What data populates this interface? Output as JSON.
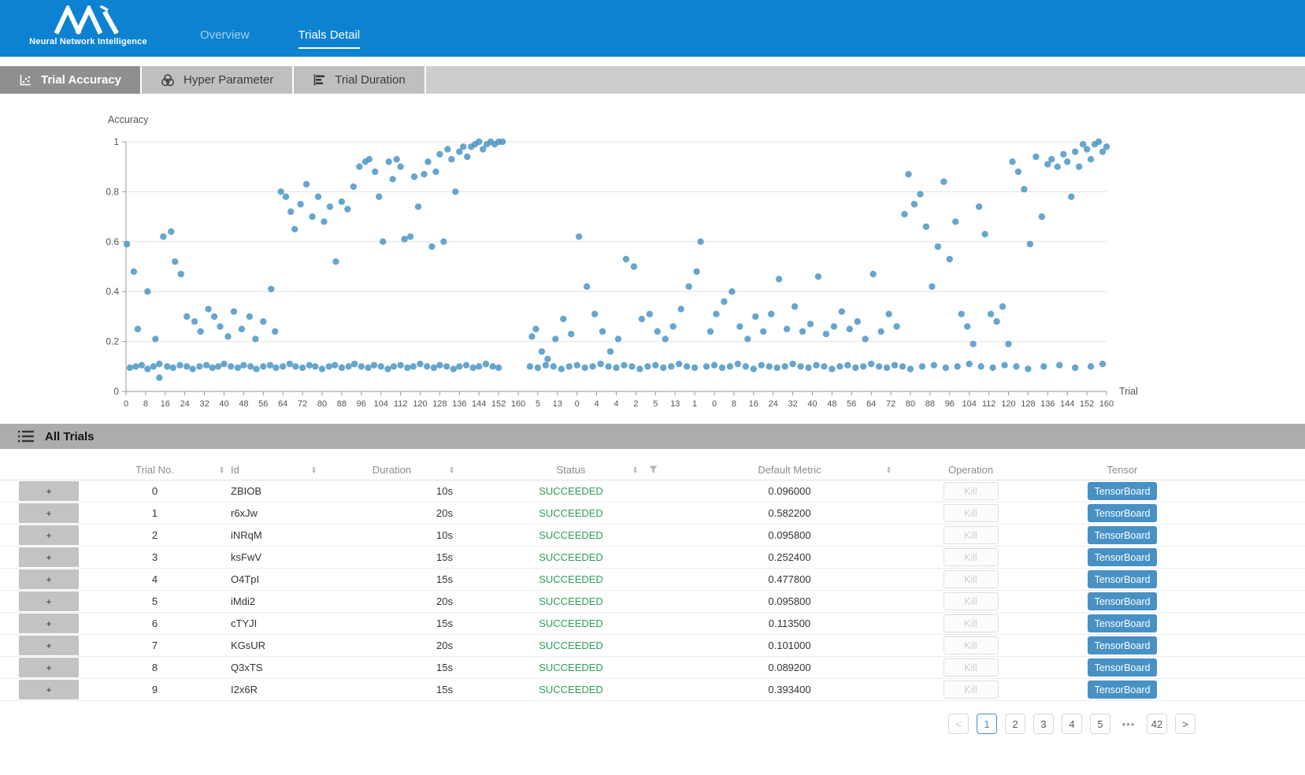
{
  "header": {
    "brand": {
      "subtitle": "Neural Network Intelligence"
    },
    "nav": [
      {
        "label": "Overview",
        "active": false
      },
      {
        "label": "Trials Detail",
        "active": true
      }
    ]
  },
  "subtabs": [
    {
      "label": "Trial Accuracy",
      "active": true
    },
    {
      "label": "Hyper Parameter",
      "active": false
    },
    {
      "label": "Trial Duration",
      "active": false
    }
  ],
  "chart_data": {
    "type": "scatter",
    "title": "",
    "ylabel": "Accuracy",
    "xlabel": "Trial",
    "ylim": [
      0,
      1
    ],
    "yticks": [
      0,
      0.2,
      0.4,
      0.6,
      0.8,
      1
    ],
    "grid": true,
    "point_color": "#4b96c6",
    "xticklabels": [
      "0",
      "8",
      "16",
      "24",
      "32",
      "40",
      "48",
      "56",
      "64",
      "72",
      "80",
      "88",
      "96",
      "104",
      "112",
      "120",
      "128",
      "136",
      "144",
      "152",
      "160",
      "5",
      "13",
      "0",
      "4",
      "4",
      "2",
      "5",
      "13",
      "1",
      "0",
      "8",
      "16",
      "24",
      "32",
      "40",
      "48",
      "56",
      "64",
      "72",
      "80",
      "88",
      "96",
      "104",
      "112",
      "120",
      "128",
      "136",
      "144",
      "152",
      "160"
    ],
    "points": [
      [
        0.004,
        0.095
      ],
      [
        0.01,
        0.1
      ],
      [
        0.016,
        0.105
      ],
      [
        0.022,
        0.09
      ],
      [
        0.028,
        0.1
      ],
      [
        0.034,
        0.11
      ],
      [
        0.042,
        0.1
      ],
      [
        0.048,
        0.095
      ],
      [
        0.055,
        0.105
      ],
      [
        0.062,
        0.1
      ],
      [
        0.068,
        0.09
      ],
      [
        0.075,
        0.1
      ],
      [
        0.082,
        0.105
      ],
      [
        0.088,
        0.095
      ],
      [
        0.094,
        0.1
      ],
      [
        0.1,
        0.11
      ],
      [
        0.107,
        0.1
      ],
      [
        0.114,
        0.095
      ],
      [
        0.12,
        0.105
      ],
      [
        0.127,
        0.1
      ],
      [
        0.133,
        0.09
      ],
      [
        0.14,
        0.1
      ],
      [
        0.147,
        0.105
      ],
      [
        0.153,
        0.095
      ],
      [
        0.16,
        0.1
      ],
      [
        0.167,
        0.11
      ],
      [
        0.173,
        0.1
      ],
      [
        0.18,
        0.095
      ],
      [
        0.187,
        0.105
      ],
      [
        0.193,
        0.1
      ],
      [
        0.2,
        0.09
      ],
      [
        0.207,
        0.1
      ],
      [
        0.213,
        0.105
      ],
      [
        0.22,
        0.095
      ],
      [
        0.227,
        0.1
      ],
      [
        0.233,
        0.11
      ],
      [
        0.24,
        0.1
      ],
      [
        0.247,
        0.095
      ],
      [
        0.253,
        0.105
      ],
      [
        0.26,
        0.1
      ],
      [
        0.267,
        0.09
      ],
      [
        0.273,
        0.1
      ],
      [
        0.28,
        0.105
      ],
      [
        0.287,
        0.095
      ],
      [
        0.293,
        0.1
      ],
      [
        0.3,
        0.11
      ],
      [
        0.307,
        0.1
      ],
      [
        0.314,
        0.095
      ],
      [
        0.32,
        0.105
      ],
      [
        0.327,
        0.1
      ],
      [
        0.334,
        0.09
      ],
      [
        0.34,
        0.1
      ],
      [
        0.347,
        0.105
      ],
      [
        0.354,
        0.095
      ],
      [
        0.36,
        0.1
      ],
      [
        0.367,
        0.11
      ],
      [
        0.374,
        0.1
      ],
      [
        0.38,
        0.095
      ],
      [
        0.034,
        0.055
      ],
      [
        0.412,
        0.1
      ],
      [
        0.42,
        0.095
      ],
      [
        0.428,
        0.105
      ],
      [
        0.436,
        0.1
      ],
      [
        0.444,
        0.09
      ],
      [
        0.452,
        0.1
      ],
      [
        0.46,
        0.105
      ],
      [
        0.468,
        0.095
      ],
      [
        0.476,
        0.1
      ],
      [
        0.484,
        0.11
      ],
      [
        0.492,
        0.1
      ],
      [
        0.5,
        0.095
      ],
      [
        0.508,
        0.105
      ],
      [
        0.516,
        0.1
      ],
      [
        0.524,
        0.09
      ],
      [
        0.532,
        0.1
      ],
      [
        0.54,
        0.105
      ],
      [
        0.548,
        0.095
      ],
      [
        0.556,
        0.1
      ],
      [
        0.564,
        0.11
      ],
      [
        0.572,
        0.1
      ],
      [
        0.58,
        0.095
      ],
      [
        0.592,
        0.1
      ],
      [
        0.6,
        0.105
      ],
      [
        0.608,
        0.095
      ],
      [
        0.616,
        0.1
      ],
      [
        0.624,
        0.11
      ],
      [
        0.632,
        0.1
      ],
      [
        0.64,
        0.09
      ],
      [
        0.648,
        0.105
      ],
      [
        0.656,
        0.1
      ],
      [
        0.664,
        0.095
      ],
      [
        0.672,
        0.1
      ],
      [
        0.68,
        0.11
      ],
      [
        0.688,
        0.1
      ],
      [
        0.696,
        0.095
      ],
      [
        0.704,
        0.105
      ],
      [
        0.712,
        0.1
      ],
      [
        0.72,
        0.09
      ],
      [
        0.728,
        0.1
      ],
      [
        0.736,
        0.105
      ],
      [
        0.744,
        0.095
      ],
      [
        0.752,
        0.1
      ],
      [
        0.76,
        0.11
      ],
      [
        0.768,
        0.1
      ],
      [
        0.776,
        0.095
      ],
      [
        0.784,
        0.105
      ],
      [
        0.792,
        0.1
      ],
      [
        0.8,
        0.09
      ],
      [
        0.812,
        0.1
      ],
      [
        0.824,
        0.105
      ],
      [
        0.836,
        0.095
      ],
      [
        0.848,
        0.1
      ],
      [
        0.86,
        0.11
      ],
      [
        0.872,
        0.1
      ],
      [
        0.884,
        0.095
      ],
      [
        0.896,
        0.105
      ],
      [
        0.908,
        0.1
      ],
      [
        0.92,
        0.09
      ],
      [
        0.936,
        0.1
      ],
      [
        0.952,
        0.105
      ],
      [
        0.968,
        0.095
      ],
      [
        0.984,
        0.1
      ],
      [
        0.996,
        0.11
      ],
      [
        0.001,
        0.59
      ],
      [
        0.008,
        0.48
      ],
      [
        0.012,
        0.25
      ],
      [
        0.022,
        0.4
      ],
      [
        0.03,
        0.21
      ],
      [
        0.038,
        0.62
      ],
      [
        0.046,
        0.64
      ],
      [
        0.05,
        0.52
      ],
      [
        0.056,
        0.47
      ],
      [
        0.062,
        0.3
      ],
      [
        0.07,
        0.28
      ],
      [
        0.076,
        0.24
      ],
      [
        0.084,
        0.33
      ],
      [
        0.09,
        0.3
      ],
      [
        0.096,
        0.26
      ],
      [
        0.104,
        0.22
      ],
      [
        0.11,
        0.32
      ],
      [
        0.118,
        0.25
      ],
      [
        0.126,
        0.3
      ],
      [
        0.132,
        0.21
      ],
      [
        0.14,
        0.28
      ],
      [
        0.148,
        0.41
      ],
      [
        0.152,
        0.24
      ],
      [
        0.158,
        0.8
      ],
      [
        0.163,
        0.78
      ],
      [
        0.168,
        0.72
      ],
      [
        0.172,
        0.65
      ],
      [
        0.178,
        0.75
      ],
      [
        0.184,
        0.83
      ],
      [
        0.19,
        0.7
      ],
      [
        0.196,
        0.78
      ],
      [
        0.202,
        0.68
      ],
      [
        0.208,
        0.74
      ],
      [
        0.214,
        0.52
      ],
      [
        0.22,
        0.76
      ],
      [
        0.226,
        0.73
      ],
      [
        0.232,
        0.82
      ],
      [
        0.238,
        0.9
      ],
      [
        0.244,
        0.92
      ],
      [
        0.248,
        0.93
      ],
      [
        0.254,
        0.88
      ],
      [
        0.258,
        0.78
      ],
      [
        0.262,
        0.6
      ],
      [
        0.268,
        0.92
      ],
      [
        0.272,
        0.85
      ],
      [
        0.276,
        0.93
      ],
      [
        0.28,
        0.9
      ],
      [
        0.284,
        0.61
      ],
      [
        0.29,
        0.62
      ],
      [
        0.294,
        0.86
      ],
      [
        0.298,
        0.74
      ],
      [
        0.304,
        0.87
      ],
      [
        0.308,
        0.92
      ],
      [
        0.312,
        0.58
      ],
      [
        0.316,
        0.88
      ],
      [
        0.32,
        0.95
      ],
      [
        0.324,
        0.6
      ],
      [
        0.328,
        0.97
      ],
      [
        0.332,
        0.93
      ],
      [
        0.336,
        0.8
      ],
      [
        0.34,
        0.96
      ],
      [
        0.344,
        0.98
      ],
      [
        0.348,
        0.94
      ],
      [
        0.352,
        0.98
      ],
      [
        0.356,
        0.99
      ],
      [
        0.36,
        1.0
      ],
      [
        0.364,
        0.97
      ],
      [
        0.368,
        0.99
      ],
      [
        0.372,
        1.0
      ],
      [
        0.376,
        0.99
      ],
      [
        0.38,
        1.0
      ],
      [
        0.384,
        1.0
      ],
      [
        0.414,
        0.22
      ],
      [
        0.418,
        0.25
      ],
      [
        0.424,
        0.16
      ],
      [
        0.43,
        0.13
      ],
      [
        0.438,
        0.21
      ],
      [
        0.446,
        0.29
      ],
      [
        0.454,
        0.23
      ],
      [
        0.462,
        0.62
      ],
      [
        0.47,
        0.42
      ],
      [
        0.478,
        0.31
      ],
      [
        0.486,
        0.24
      ],
      [
        0.494,
        0.16
      ],
      [
        0.502,
        0.21
      ],
      [
        0.51,
        0.53
      ],
      [
        0.518,
        0.5
      ],
      [
        0.526,
        0.29
      ],
      [
        0.534,
        0.31
      ],
      [
        0.542,
        0.24
      ],
      [
        0.55,
        0.21
      ],
      [
        0.558,
        0.26
      ],
      [
        0.566,
        0.33
      ],
      [
        0.574,
        0.42
      ],
      [
        0.582,
        0.48
      ],
      [
        0.586,
        0.6
      ],
      [
        0.596,
        0.24
      ],
      [
        0.602,
        0.31
      ],
      [
        0.61,
        0.36
      ],
      [
        0.618,
        0.4
      ],
      [
        0.626,
        0.26
      ],
      [
        0.634,
        0.21
      ],
      [
        0.642,
        0.3
      ],
      [
        0.65,
        0.24
      ],
      [
        0.658,
        0.31
      ],
      [
        0.666,
        0.45
      ],
      [
        0.674,
        0.25
      ],
      [
        0.682,
        0.34
      ],
      [
        0.69,
        0.24
      ],
      [
        0.698,
        0.27
      ],
      [
        0.706,
        0.46
      ],
      [
        0.714,
        0.23
      ],
      [
        0.722,
        0.26
      ],
      [
        0.73,
        0.32
      ],
      [
        0.738,
        0.25
      ],
      [
        0.746,
        0.28
      ],
      [
        0.754,
        0.21
      ],
      [
        0.762,
        0.47
      ],
      [
        0.77,
        0.24
      ],
      [
        0.778,
        0.31
      ],
      [
        0.786,
        0.26
      ],
      [
        0.794,
        0.71
      ],
      [
        0.798,
        0.87
      ],
      [
        0.804,
        0.75
      ],
      [
        0.81,
        0.79
      ],
      [
        0.816,
        0.66
      ],
      [
        0.822,
        0.42
      ],
      [
        0.828,
        0.58
      ],
      [
        0.834,
        0.84
      ],
      [
        0.84,
        0.53
      ],
      [
        0.846,
        0.68
      ],
      [
        0.852,
        0.31
      ],
      [
        0.858,
        0.26
      ],
      [
        0.864,
        0.19
      ],
      [
        0.87,
        0.74
      ],
      [
        0.876,
        0.63
      ],
      [
        0.882,
        0.31
      ],
      [
        0.888,
        0.28
      ],
      [
        0.894,
        0.34
      ],
      [
        0.9,
        0.19
      ],
      [
        0.904,
        0.92
      ],
      [
        0.91,
        0.88
      ],
      [
        0.916,
        0.81
      ],
      [
        0.922,
        0.59
      ],
      [
        0.928,
        0.94
      ],
      [
        0.934,
        0.7
      ],
      [
        0.94,
        0.91
      ],
      [
        0.944,
        0.93
      ],
      [
        0.95,
        0.9
      ],
      [
        0.956,
        0.95
      ],
      [
        0.96,
        0.92
      ],
      [
        0.964,
        0.78
      ],
      [
        0.968,
        0.96
      ],
      [
        0.972,
        0.9
      ],
      [
        0.976,
        0.99
      ],
      [
        0.98,
        0.97
      ],
      [
        0.984,
        0.93
      ],
      [
        0.988,
        0.99
      ],
      [
        0.992,
        1.0
      ],
      [
        0.996,
        0.96
      ],
      [
        1.0,
        0.98
      ]
    ]
  },
  "table": {
    "section_title": "All Trials",
    "expand_symbol": "+",
    "columns": [
      {
        "label": "Trial No.",
        "sortable": true
      },
      {
        "label": "Id",
        "sortable": true
      },
      {
        "label": "Duration",
        "sortable": true
      },
      {
        "label": "Status",
        "sortable": true,
        "filterable": true
      },
      {
        "label": "Default Metric",
        "sortable": true
      },
      {
        "label": "Operation",
        "sortable": false
      },
      {
        "label": "Tensor",
        "sortable": false
      }
    ],
    "rows": [
      {
        "trial_no": "0",
        "id": "ZBIOB",
        "duration": "10s",
        "status": "SUCCEEDED",
        "default_metric": "0.096000",
        "operation": "Kill",
        "tensor": "TensorBoard"
      },
      {
        "trial_no": "1",
        "id": "r6xJw",
        "duration": "20s",
        "status": "SUCCEEDED",
        "default_metric": "0.582200",
        "operation": "Kill",
        "tensor": "TensorBoard"
      },
      {
        "trial_no": "2",
        "id": "iNRqM",
        "duration": "10s",
        "status": "SUCCEEDED",
        "default_metric": "0.095800",
        "operation": "Kill",
        "tensor": "TensorBoard"
      },
      {
        "trial_no": "3",
        "id": "ksFwV",
        "duration": "15s",
        "status": "SUCCEEDED",
        "default_metric": "0.252400",
        "operation": "Kill",
        "tensor": "TensorBoard"
      },
      {
        "trial_no": "4",
        "id": "O4TpI",
        "duration": "15s",
        "status": "SUCCEEDED",
        "default_metric": "0.477800",
        "operation": "Kill",
        "tensor": "TensorBoard"
      },
      {
        "trial_no": "5",
        "id": "iMdi2",
        "duration": "20s",
        "status": "SUCCEEDED",
        "default_metric": "0.095800",
        "operation": "Kill",
        "tensor": "TensorBoard"
      },
      {
        "trial_no": "6",
        "id": "cTYJI",
        "duration": "15s",
        "status": "SUCCEEDED",
        "default_metric": "0.113500",
        "operation": "Kill",
        "tensor": "TensorBoard"
      },
      {
        "trial_no": "7",
        "id": "KGsUR",
        "duration": "20s",
        "status": "SUCCEEDED",
        "default_metric": "0.101000",
        "operation": "Kill",
        "tensor": "TensorBoard"
      },
      {
        "trial_no": "8",
        "id": "Q3xTS",
        "duration": "15s",
        "status": "SUCCEEDED",
        "default_metric": "0.089200",
        "operation": "Kill",
        "tensor": "TensorBoard"
      },
      {
        "trial_no": "9",
        "id": "I2x6R",
        "duration": "15s",
        "status": "SUCCEEDED",
        "default_metric": "0.393400",
        "operation": "Kill",
        "tensor": "TensorBoard"
      }
    ]
  },
  "pagination": {
    "prev": "<",
    "next": ">",
    "pages": [
      "1",
      "2",
      "3",
      "4",
      "5",
      "•••",
      "42"
    ],
    "active": "1"
  },
  "colors": {
    "navbar_blue": "#0d82d0",
    "point_blue": "#4b96c6",
    "success_green": "#2ba05a",
    "button_blue": "#4791c5"
  }
}
